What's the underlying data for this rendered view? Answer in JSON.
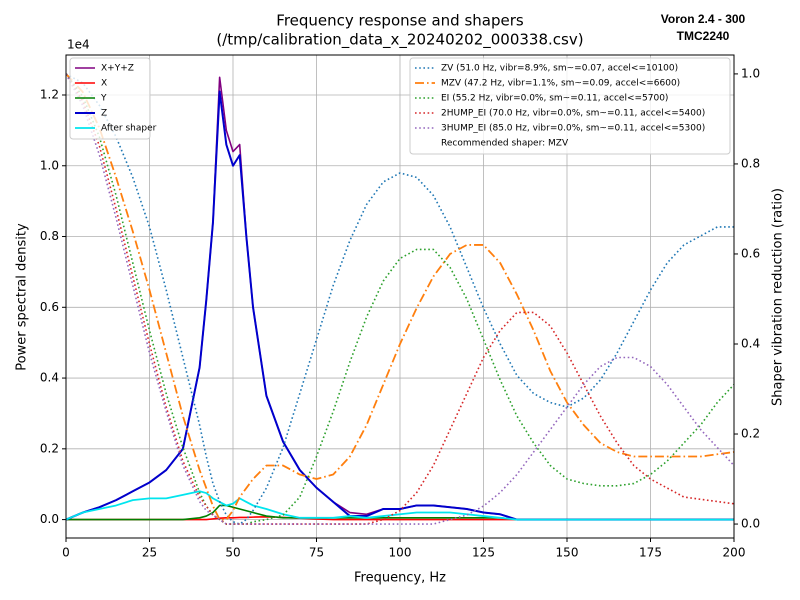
{
  "chart_data": {
    "type": "line",
    "title": "Frequency response and shapers",
    "subtitle": "(/tmp/calibration_data_x_20240202_000338.csv)",
    "annotations": [
      "Voron 2.4 - 300",
      "TMC2240"
    ],
    "xlabel": "Frequency, Hz",
    "ylabel": "Power spectral density",
    "y2label": "Shaper vibration reduction (ratio)",
    "yoffset_label": "1e4",
    "xlim": [
      0,
      200
    ],
    "xticks": [
      0,
      25,
      50,
      75,
      100,
      125,
      150,
      175,
      200
    ],
    "ylim": [
      -0.052,
      1.313
    ],
    "yticks": [
      {
        "value": 0,
        "label": "0.0"
      },
      0.2,
      0.4,
      0.6,
      0.8,
      {
        "value": 1,
        "label": "1.0"
      },
      1.2
    ],
    "y2lim": [
      -0.031,
      1.042
    ],
    "y2ticks": [
      {
        "value": 0,
        "label": "0.0"
      },
      0.2,
      0.4,
      0.6,
      0.8,
      {
        "value": 1,
        "label": "1.0"
      }
    ],
    "grid": true,
    "legend_loc": "upper left",
    "legend2_loc": "upper right",
    "legend2_note": "Recommended shaper: MZV",
    "x": [
      0,
      5,
      10,
      15,
      20,
      25,
      30,
      35,
      40,
      42,
      44,
      46,
      48,
      50,
      52,
      54,
      56,
      60,
      65,
      70,
      75,
      80,
      85,
      90,
      95,
      100,
      105,
      110,
      115,
      120,
      125,
      130,
      135,
      140,
      145,
      150,
      155,
      160,
      165,
      170,
      175,
      180,
      185,
      190,
      195,
      200
    ],
    "series": [
      {
        "name": "X+Y+Z",
        "color": "#800080",
        "style": "solid",
        "width": 1.6,
        "values": [
          0,
          0.02,
          0.035,
          0.055,
          0.08,
          0.105,
          0.14,
          0.2,
          0.43,
          0.62,
          0.84,
          1.25,
          1.1,
          1.04,
          1.06,
          0.8,
          0.6,
          0.35,
          0.22,
          0.14,
          0.09,
          0.05,
          0.02,
          0.015,
          0.03,
          0.03,
          0.04,
          0.04,
          0.035,
          0.03,
          0.02,
          0.015,
          0,
          0,
          0,
          0,
          0,
          0,
          0,
          0,
          0,
          0,
          0,
          0,
          0,
          0
        ]
      },
      {
        "name": "X",
        "color": "#ff0000",
        "style": "solid",
        "width": 1.6,
        "values": [
          0,
          0,
          0,
          0,
          0,
          0,
          0,
          0,
          0,
          0,
          0.002,
          0.004,
          0.005,
          0.005,
          0.006,
          0.006,
          0.007,
          0.008,
          0.006,
          0.004,
          0.002,
          0,
          0,
          0,
          0,
          0,
          0,
          0,
          0,
          0,
          0,
          0,
          0,
          0,
          0,
          0,
          0,
          0,
          0,
          0,
          0,
          0,
          0,
          0,
          0,
          0
        ]
      },
      {
        "name": "Y",
        "color": "#008000",
        "style": "solid",
        "width": 1.6,
        "values": [
          0,
          0,
          0,
          0,
          0,
          0,
          0,
          0,
          0.005,
          0.01,
          0.02,
          0.04,
          0.04,
          0.035,
          0.03,
          0.025,
          0.02,
          0.01,
          0.005,
          0.005,
          0.005,
          0.005,
          0.005,
          0.005,
          0.005,
          0.005,
          0.005,
          0.005,
          0.005,
          0.005,
          0.005,
          0.005,
          0,
          0,
          0,
          0,
          0,
          0,
          0,
          0,
          0,
          0,
          0,
          0,
          0,
          0
        ]
      },
      {
        "name": "Z",
        "color": "#0000cc",
        "style": "solid",
        "width": 2,
        "values": [
          0,
          0.02,
          0.035,
          0.055,
          0.08,
          0.105,
          0.14,
          0.2,
          0.43,
          0.62,
          0.84,
          1.21,
          1.06,
          1.0,
          1.03,
          0.8,
          0.6,
          0.35,
          0.22,
          0.14,
          0.09,
          0.05,
          0.01,
          0.01,
          0.03,
          0.03,
          0.04,
          0.04,
          0.035,
          0.03,
          0.02,
          0.015,
          0,
          0,
          0,
          0,
          0,
          0,
          0,
          0,
          0,
          0,
          0,
          0,
          0,
          0
        ]
      },
      {
        "name": "After shaper",
        "color": "#00e5ee",
        "style": "solid",
        "width": 1.8,
        "values": [
          0,
          0.02,
          0.03,
          0.04,
          0.055,
          0.06,
          0.06,
          0.07,
          0.08,
          0.075,
          0.06,
          0.05,
          0.04,
          0.045,
          0.06,
          0.05,
          0.04,
          0.03,
          0.015,
          0.005,
          0.005,
          0.005,
          0.01,
          0.005,
          0.01,
          0.015,
          0.02,
          0.02,
          0.02,
          0.015,
          0.01,
          0.005,
          0,
          0,
          0,
          0,
          0,
          0,
          0,
          0,
          0,
          0,
          0,
          0,
          0,
          0
        ]
      },
      {
        "name": "ZV (51.0 Hz, vibr=8.9%, sm~=0.07, accel<=10100)",
        "color": "#1f77b4",
        "style": "dotted",
        "width": 1.6,
        "axis": "y2",
        "values": [
          1.0,
          0.98,
          0.93,
          0.86,
          0.77,
          0.66,
          0.52,
          0.37,
          0.22,
          0.15,
          0.09,
          0.05,
          0.02,
          0.005,
          0,
          0.01,
          0.03,
          0.08,
          0.17,
          0.29,
          0.41,
          0.53,
          0.63,
          0.71,
          0.76,
          0.78,
          0.77,
          0.73,
          0.66,
          0.57,
          0.48,
          0.4,
          0.33,
          0.29,
          0.27,
          0.26,
          0.28,
          0.32,
          0.38,
          0.45,
          0.52,
          0.58,
          0.62,
          0.64,
          0.66,
          0.66
        ]
      },
      {
        "name": "MZV (47.2 Hz, vibr=1.1%, sm~=0.09, accel<=6600)",
        "color": "#ff7f0e",
        "style": "dashdot",
        "width": 1.8,
        "axis": "y2",
        "values": [
          1.0,
          0.96,
          0.88,
          0.77,
          0.65,
          0.52,
          0.38,
          0.24,
          0.12,
          0.08,
          0.04,
          0.01,
          0.01,
          0.03,
          0.06,
          0.08,
          0.1,
          0.13,
          0.13,
          0.11,
          0.1,
          0.11,
          0.15,
          0.22,
          0.31,
          0.4,
          0.48,
          0.55,
          0.6,
          0.62,
          0.62,
          0.58,
          0.51,
          0.43,
          0.34,
          0.27,
          0.22,
          0.18,
          0.16,
          0.15,
          0.15,
          0.15,
          0.15,
          0.15,
          0.155,
          0.16
        ]
      },
      {
        "name": "EI (55.2 Hz, vibr=0.0%, sm~=0.11, accel<=5700)",
        "color": "#2ca02c",
        "style": "dotted",
        "width": 1.6,
        "axis": "y2",
        "values": [
          1.0,
          0.95,
          0.86,
          0.73,
          0.58,
          0.43,
          0.29,
          0.17,
          0.07,
          0.04,
          0.02,
          0.01,
          0,
          0,
          0,
          0,
          0.005,
          0.01,
          0.02,
          0.06,
          0.15,
          0.25,
          0.36,
          0.46,
          0.54,
          0.59,
          0.61,
          0.61,
          0.57,
          0.5,
          0.41,
          0.32,
          0.24,
          0.18,
          0.13,
          0.1,
          0.09,
          0.085,
          0.085,
          0.09,
          0.11,
          0.14,
          0.18,
          0.22,
          0.27,
          0.31
        ]
      },
      {
        "name": "2HUMP_EI (70.0 Hz, vibr=0.0%, sm~=0.11, accel<=5400)",
        "color": "#d62728",
        "style": "dotted",
        "width": 1.6,
        "axis": "y2",
        "values": [
          1.0,
          0.94,
          0.84,
          0.7,
          0.55,
          0.4,
          0.26,
          0.14,
          0.06,
          0.04,
          0.02,
          0.01,
          0,
          0,
          0,
          0,
          0,
          0,
          0,
          0,
          0,
          0,
          0,
          0,
          0.01,
          0.03,
          0.07,
          0.13,
          0.21,
          0.29,
          0.37,
          0.43,
          0.47,
          0.47,
          0.44,
          0.38,
          0.31,
          0.24,
          0.18,
          0.13,
          0.1,
          0.08,
          0.06,
          0.055,
          0.05,
          0.045
        ]
      },
      {
        "name": "3HUMP_EI (85.0 Hz, vibr=0.0%, sm~=0.11, accel<=5300)",
        "color": "#9467bd",
        "style": "dotted",
        "width": 1.6,
        "axis": "y2",
        "values": [
          1.0,
          0.93,
          0.82,
          0.68,
          0.53,
          0.38,
          0.25,
          0.13,
          0.05,
          0.03,
          0.02,
          0.01,
          0,
          0,
          0,
          0,
          0,
          0,
          0,
          0,
          0,
          0,
          0,
          0,
          0,
          0,
          0,
          0,
          0.01,
          0.02,
          0.04,
          0.07,
          0.11,
          0.16,
          0.21,
          0.26,
          0.31,
          0.35,
          0.37,
          0.37,
          0.35,
          0.31,
          0.26,
          0.21,
          0.17,
          0.13
        ]
      }
    ]
  }
}
